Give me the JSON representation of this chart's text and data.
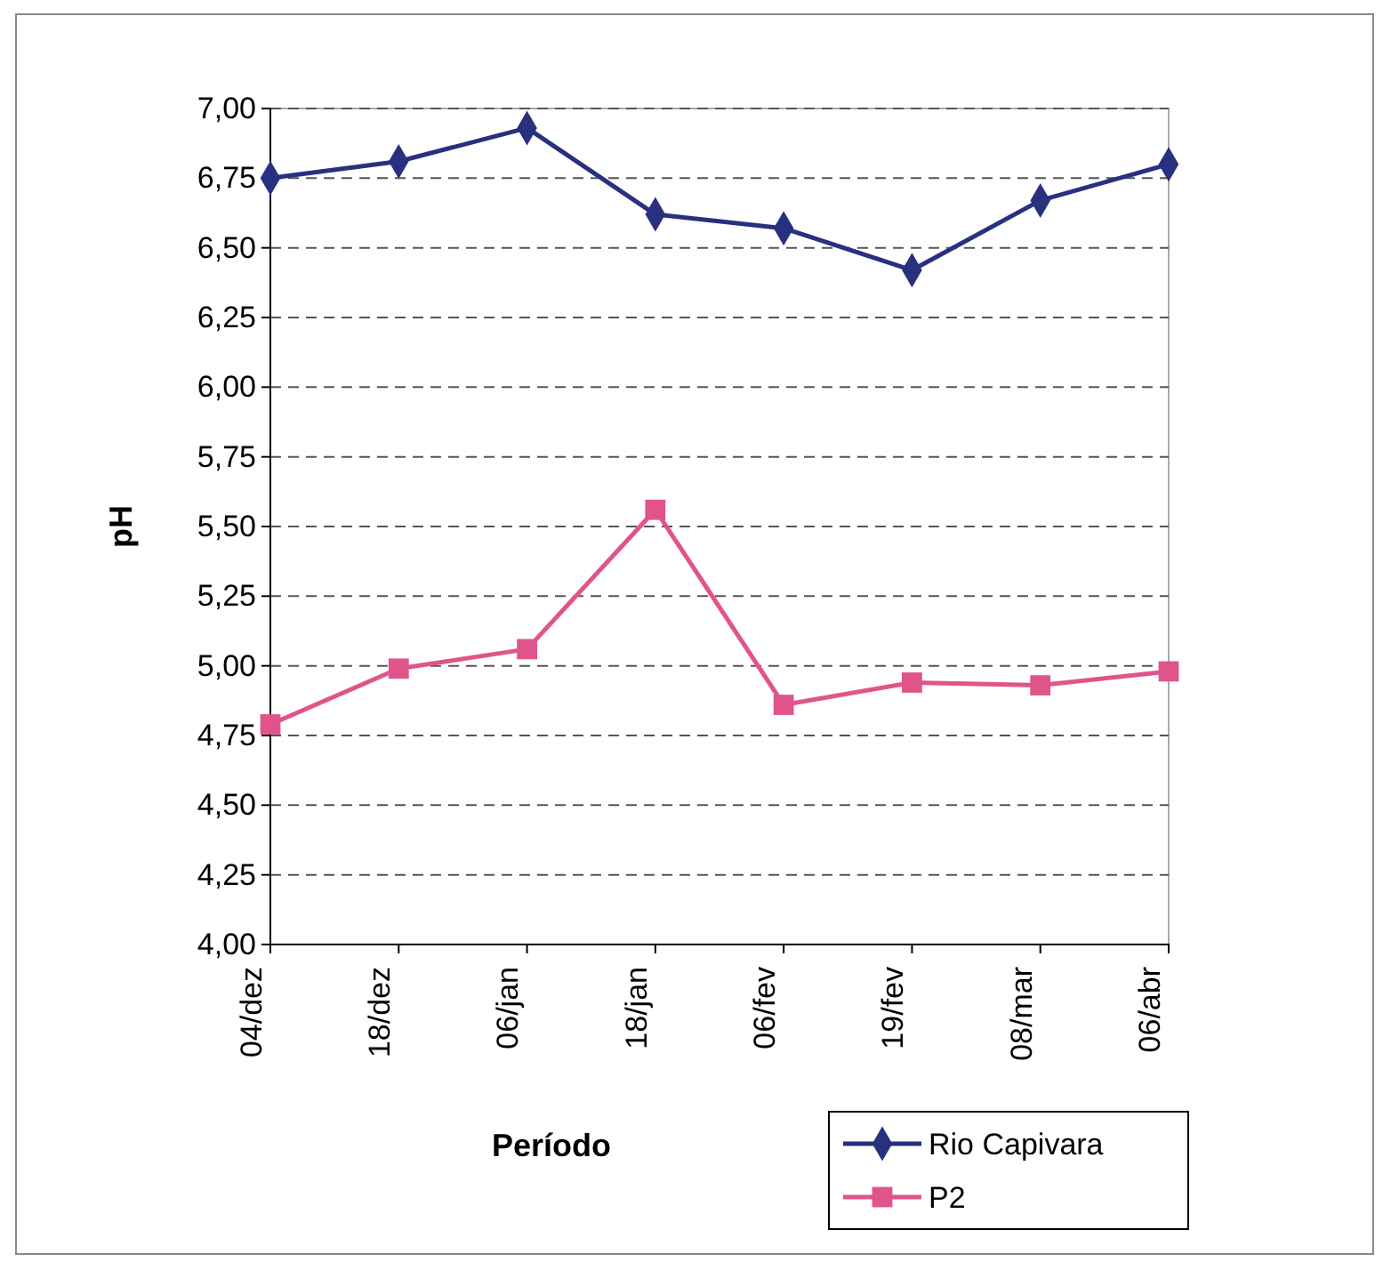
{
  "chart_data": {
    "type": "line",
    "xlabel": "Período",
    "ylabel": "pH",
    "categories": [
      "04/dez",
      "18/dez",
      "06/jan",
      "18/jan",
      "06/fev",
      "19/fev",
      "08/mar",
      "06/abr"
    ],
    "series": [
      {
        "name": "Rio Capivara",
        "color": "#283080",
        "marker": "diamond",
        "values": [
          6.75,
          6.81,
          6.93,
          6.62,
          6.57,
          6.42,
          6.67,
          6.8
        ]
      },
      {
        "name": "P2",
        "color": "#e0548c",
        "marker": "square",
        "values": [
          4.79,
          4.99,
          5.06,
          5.56,
          4.86,
          4.94,
          4.93,
          4.98
        ]
      }
    ],
    "ylim": [
      4,
      7
    ],
    "yticks": [
      {
        "value": 4,
        "label": "4,00"
      },
      {
        "value": 4.25,
        "label": "4,25"
      },
      {
        "value": 4.5,
        "label": "4,50"
      },
      {
        "value": 4.75,
        "label": "4,75"
      },
      {
        "value": 5,
        "label": "5,00"
      },
      {
        "value": 5.25,
        "label": "5,25"
      },
      {
        "value": 5.5,
        "label": "5,50"
      },
      {
        "value": 5.75,
        "label": "5,75"
      },
      {
        "value": 6,
        "label": "6,00"
      },
      {
        "value": 6.25,
        "label": "6,25"
      },
      {
        "value": 6.5,
        "label": "6,50"
      },
      {
        "value": 6.75,
        "label": "6,75"
      },
      {
        "value": 7,
        "label": "7,00"
      }
    ],
    "grid": "y",
    "legend": "bottom right",
    "line_style": "solid"
  }
}
